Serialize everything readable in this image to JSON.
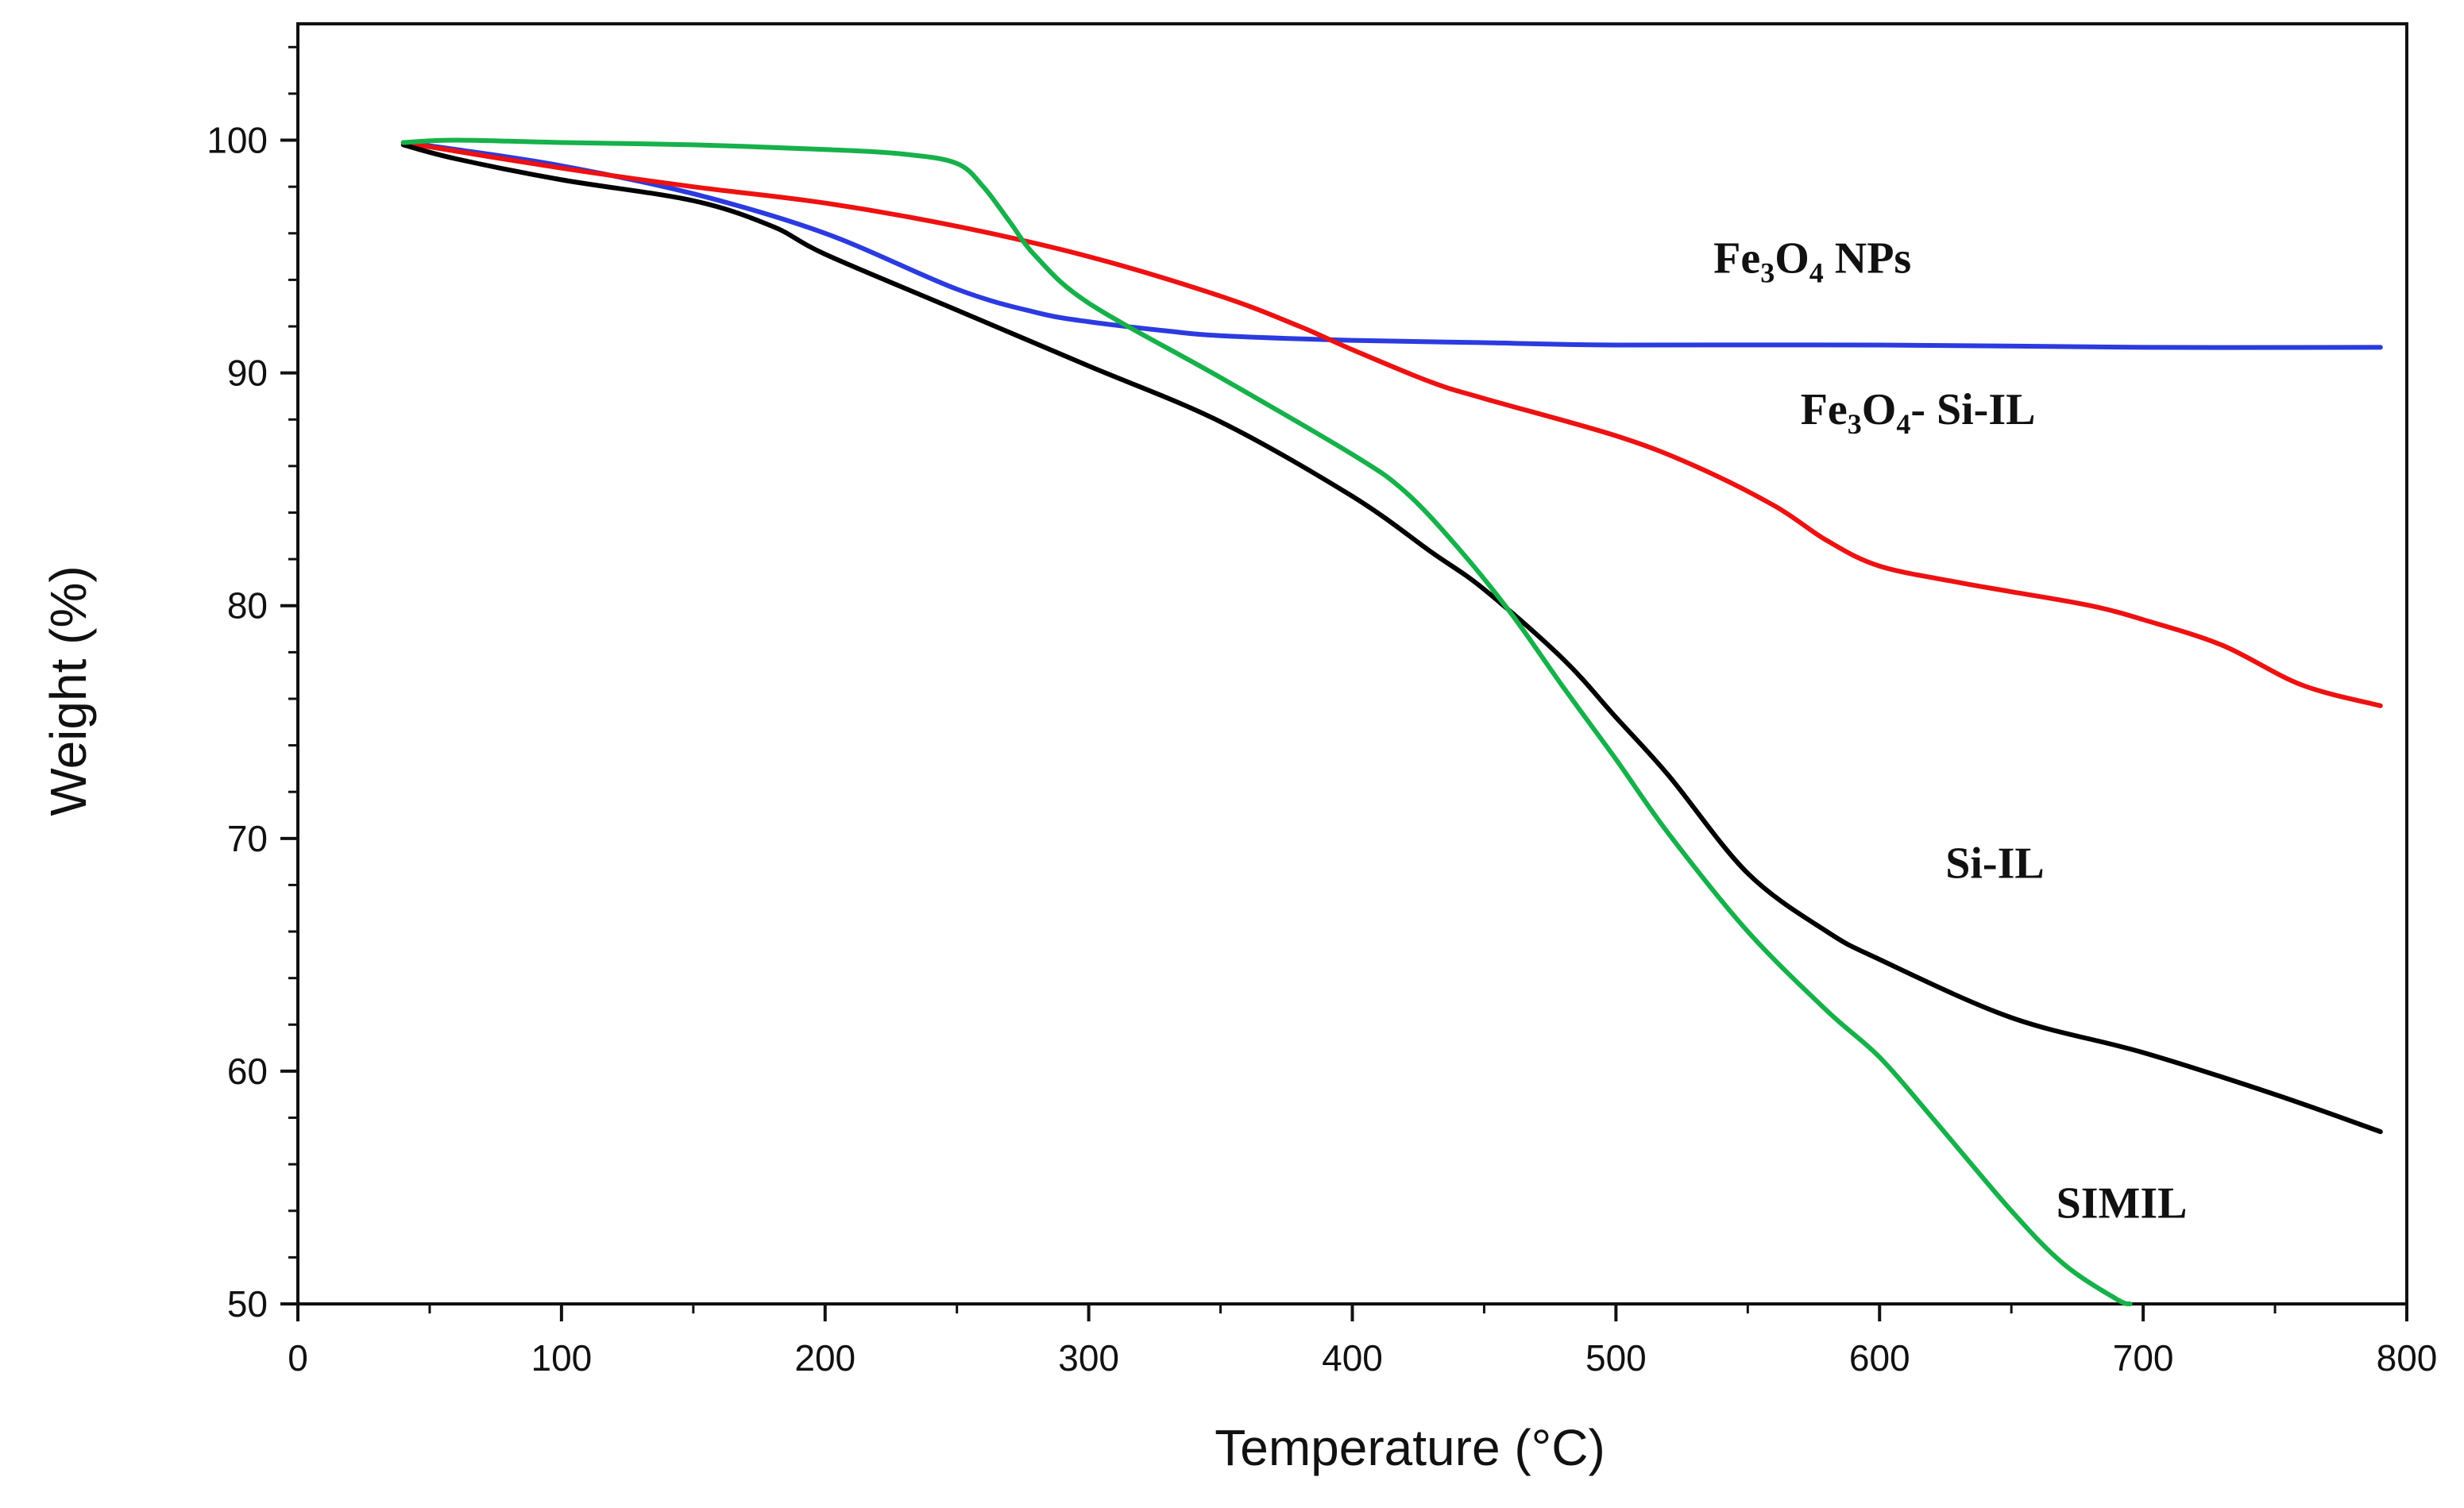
{
  "chart_data": {
    "type": "line",
    "title": "",
    "xlabel": "Temperature (°C)",
    "ylabel": "Weight (%)",
    "xlim": [
      0,
      800
    ],
    "ylim": [
      50,
      105
    ],
    "xticks": [
      0,
      100,
      200,
      300,
      400,
      500,
      600,
      700,
      800
    ],
    "yticks": [
      50,
      60,
      70,
      80,
      90,
      100
    ],
    "grid": false,
    "legend": "none",
    "series": [
      {
        "name": "Fe3O4 NPs",
        "color": "#2b3be0",
        "x": [
          40,
          60,
          100,
          150,
          200,
          250,
          280,
          300,
          330,
          350,
          400,
          450,
          500,
          600,
          700,
          790
        ],
        "y": [
          99.9,
          99.6,
          98.9,
          97.7,
          96.0,
          93.6,
          92.6,
          92.2,
          91.8,
          91.6,
          91.4,
          91.3,
          91.2,
          91.2,
          91.1,
          91.1
        ]
      },
      {
        "name": "Fe3O4- Si-IL",
        "color": "#ee1111",
        "x": [
          40,
          100,
          150,
          200,
          250,
          300,
          350,
          380,
          400,
          430,
          450,
          500,
          530,
          560,
          580,
          600,
          630,
          650,
          680,
          700,
          730,
          760,
          790
        ],
        "y": [
          99.9,
          98.8,
          98.0,
          97.3,
          96.3,
          95.0,
          93.3,
          92.0,
          91.0,
          89.6,
          88.9,
          87.3,
          86.0,
          84.3,
          82.8,
          81.7,
          81.0,
          80.6,
          80.0,
          79.4,
          78.3,
          76.6,
          75.7
        ]
      },
      {
        "name": "Si-IL",
        "color": "#000000",
        "x": [
          40,
          60,
          100,
          150,
          180,
          200,
          250,
          300,
          350,
          400,
          430,
          450,
          480,
          500,
          520,
          550,
          580,
          600,
          650,
          700,
          750,
          790
        ],
        "y": [
          99.8,
          99.2,
          98.3,
          97.4,
          96.3,
          95.1,
          92.7,
          90.3,
          87.9,
          84.7,
          82.3,
          80.7,
          77.7,
          75.2,
          72.7,
          68.5,
          66.0,
          64.8,
          62.3,
          60.8,
          59.0,
          57.4
        ]
      },
      {
        "name": "SIMIL",
        "color": "#16b14a",
        "x": [
          40,
          60,
          100,
          150,
          200,
          230,
          250,
          260,
          270,
          280,
          300,
          350,
          400,
          420,
          440,
          460,
          480,
          500,
          520,
          550,
          580,
          600,
          620,
          650,
          670,
          690,
          695
        ],
        "y": [
          99.9,
          100.0,
          99.9,
          99.8,
          99.6,
          99.4,
          99.0,
          98.0,
          96.5,
          95.0,
          93.0,
          89.8,
          86.5,
          84.9,
          82.5,
          79.7,
          76.5,
          73.4,
          70.2,
          66.0,
          62.6,
          60.6,
          58.0,
          54.0,
          51.7,
          50.2,
          50.0
        ]
      }
    ],
    "annotations": [
      {
        "main": "Fe",
        "sub1": "3",
        "mid": "O",
        "sub2": "4",
        "tail": " NPs",
        "x": 537,
        "y": 94.3
      },
      {
        "main": "Fe",
        "sub1": "3",
        "mid": "O",
        "sub2": "4",
        "tail": "- Si-IL",
        "x": 570,
        "y": 87.8
      },
      {
        "text": "Si-IL",
        "x": 625,
        "y": 68.3
      },
      {
        "text": "SIMIL",
        "x": 667,
        "y": 53.7
      }
    ]
  }
}
